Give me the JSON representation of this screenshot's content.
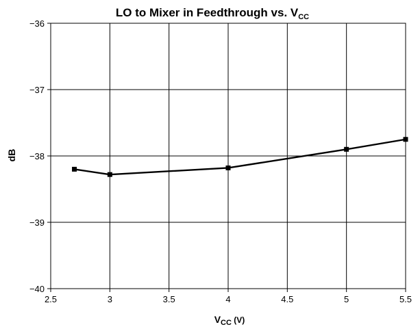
{
  "chart_data": {
    "type": "line",
    "title": {
      "main": "LO to Mixer in Feedthrough vs. V",
      "subscript": "CC"
    },
    "xlabel": {
      "main": "V",
      "subscript": "CC",
      "suffix": " (V)"
    },
    "ylabel": "dB",
    "xlim": [
      2.5,
      5.5
    ],
    "ylim": [
      -40,
      -36
    ],
    "x_ticks": [
      2.5,
      3,
      3.5,
      4,
      4.5,
      5,
      5.5
    ],
    "x_tick_labels": [
      "2.5",
      "3",
      "3.5",
      "4",
      "4.5",
      "5",
      "5.5"
    ],
    "y_ticks": [
      -36,
      -37,
      -38,
      -39,
      -40
    ],
    "y_tick_labels": [
      "−36",
      "−37",
      "−38",
      "−39",
      "−40"
    ],
    "grid": true,
    "series": [
      {
        "x": [
          2.7,
          3.0,
          4.0,
          5.0,
          5.5
        ],
        "y": [
          -38.2,
          -38.28,
          -38.18,
          -37.9,
          -37.75
        ],
        "marker": "square"
      }
    ]
  }
}
